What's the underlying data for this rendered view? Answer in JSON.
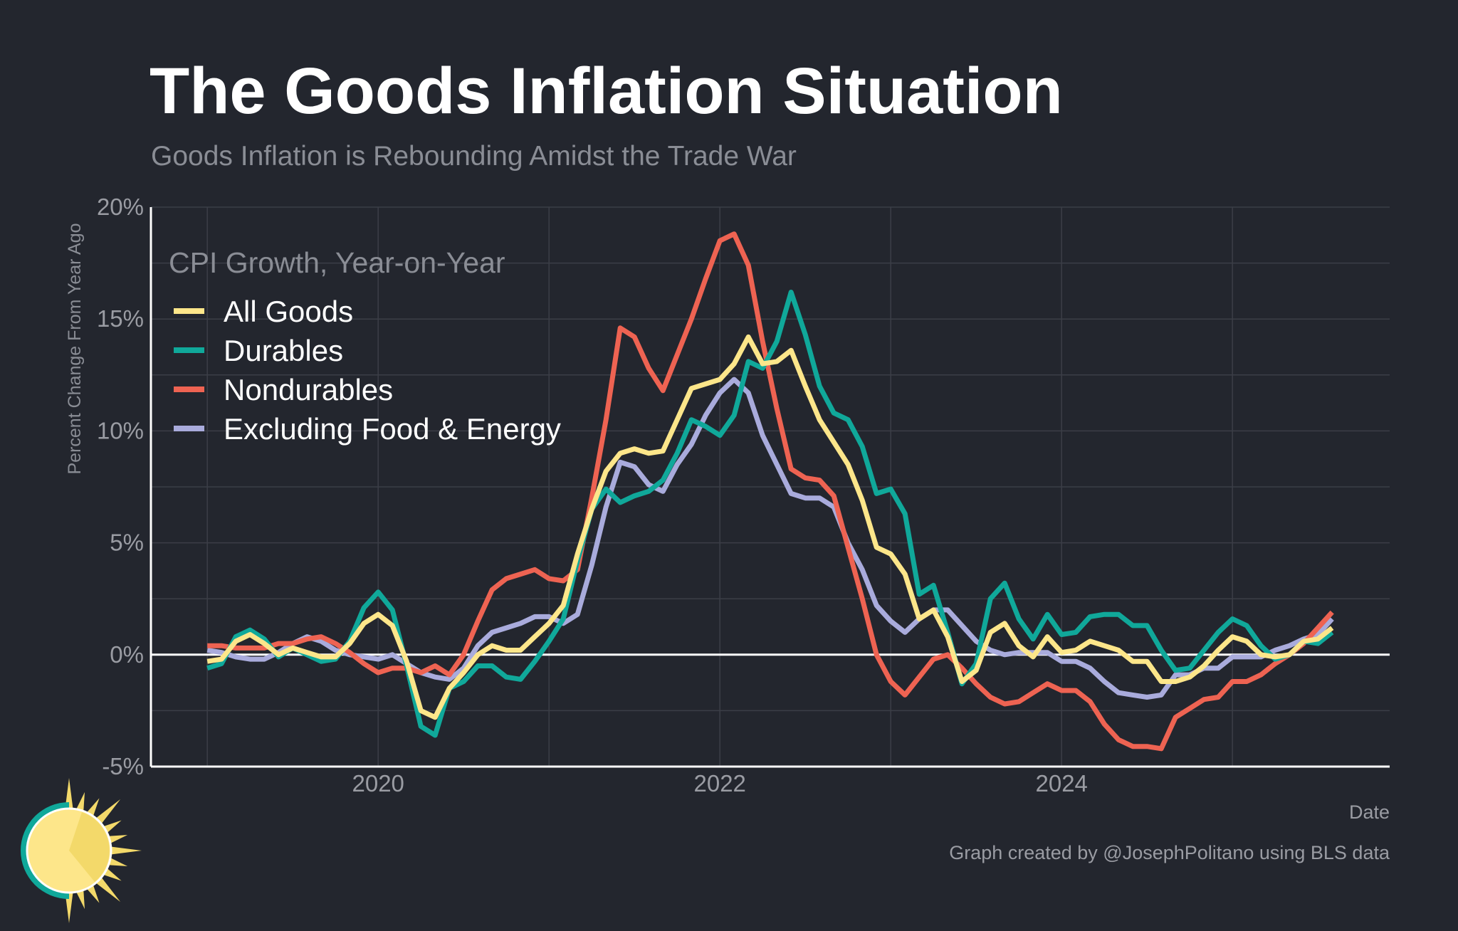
{
  "header": {
    "title": "The Goods Inflation Situation",
    "subtitle": "Goods Inflation is Rebounding Amidst the Trade War"
  },
  "footer": {
    "credit": "Graph created by @JosephPolitano using BLS data"
  },
  "colors": {
    "background": "#23262e",
    "all_goods": "#fde68a",
    "durables": "#10a89a",
    "nondurables": "#ee6352",
    "ex_food_energy": "#a9abdc"
  },
  "chart_data": {
    "type": "line",
    "title": "The Goods Inflation Situation",
    "subtitle": "Goods Inflation is Rebounding Amidst the Trade War",
    "xlabel": "Date",
    "ylabel": "Percent Change From Year Ago",
    "x_start": "2019-01",
    "x_frequency": "monthly",
    "xlim": [
      2018.67,
      2025.92
    ],
    "ylim": [
      -5,
      20
    ],
    "xticks": [
      2020,
      2022,
      2024
    ],
    "xtick_labels": [
      "2020",
      "2022",
      "2024"
    ],
    "yticks": [
      -5,
      0,
      5,
      10,
      15,
      20
    ],
    "ytick_labels": [
      "-5%",
      "0%",
      "5%",
      "10%",
      "15%",
      "20%"
    ],
    "grid": true,
    "legend_title": "CPI Growth, Year-on-Year",
    "legend_position": "top-left",
    "series": [
      {
        "name": "All Goods",
        "color_key": "all_goods",
        "values": [
          -0.3,
          -0.2,
          0.6,
          0.9,
          0.5,
          0.0,
          0.3,
          0.1,
          -0.1,
          -0.1,
          0.5,
          1.4,
          1.8,
          1.3,
          -0.3,
          -2.5,
          -2.8,
          -1.5,
          -0.8,
          0.0,
          0.4,
          0.2,
          0.2,
          0.8,
          1.4,
          2.2,
          4.5,
          6.5,
          8.2,
          9.0,
          9.2,
          9.0,
          9.1,
          10.5,
          11.9,
          12.1,
          12.3,
          13.0,
          14.2,
          13.0,
          13.1,
          13.6,
          12.0,
          10.5,
          9.5,
          8.5,
          6.9,
          4.8,
          4.5,
          3.6,
          1.6,
          2.0,
          0.8,
          -1.2,
          -0.7,
          1.0,
          1.4,
          0.4,
          -0.1,
          0.8,
          0.1,
          0.2,
          0.6,
          0.4,
          0.2,
          -0.3,
          -0.3,
          -1.2,
          -1.2,
          -1.0,
          -0.5,
          0.2,
          0.8,
          0.6,
          0.0,
          -0.1,
          0.0,
          0.6,
          0.7,
          1.2
        ]
      },
      {
        "name": "Durables",
        "color_key": "durables",
        "values": [
          -0.6,
          -0.4,
          0.8,
          1.1,
          0.7,
          -0.1,
          0.3,
          0.0,
          -0.3,
          -0.2,
          0.6,
          2.1,
          2.8,
          2.0,
          -0.5,
          -3.2,
          -3.6,
          -1.5,
          -1.2,
          -0.5,
          -0.5,
          -1.0,
          -1.1,
          -0.3,
          0.6,
          1.6,
          4.2,
          6.5,
          7.4,
          6.8,
          7.1,
          7.3,
          7.8,
          9.0,
          10.5,
          10.2,
          9.8,
          10.7,
          13.1,
          12.8,
          14.0,
          16.2,
          14.3,
          12.0,
          10.8,
          10.5,
          9.3,
          7.2,
          7.4,
          6.3,
          2.7,
          3.1,
          1.0,
          -1.3,
          -0.4,
          2.5,
          3.2,
          1.6,
          0.7,
          1.8,
          0.9,
          1.0,
          1.7,
          1.8,
          1.8,
          1.3,
          1.3,
          0.2,
          -0.7,
          -0.6,
          0.2,
          1.0,
          1.6,
          1.3,
          0.4,
          -0.2,
          0.0,
          0.6,
          0.5,
          1.0
        ]
      },
      {
        "name": "Nondurables",
        "color_key": "nondurables",
        "values": [
          0.4,
          0.4,
          0.3,
          0.3,
          0.3,
          0.5,
          0.5,
          0.7,
          0.8,
          0.5,
          0.1,
          -0.4,
          -0.8,
          -0.6,
          -0.6,
          -0.8,
          -0.5,
          -0.9,
          0.0,
          1.5,
          2.9,
          3.4,
          3.6,
          3.8,
          3.4,
          3.3,
          3.8,
          7.0,
          10.5,
          14.6,
          14.2,
          12.8,
          11.8,
          13.4,
          15.0,
          16.8,
          18.5,
          18.8,
          17.4,
          14.0,
          11.0,
          8.3,
          7.9,
          7.8,
          7.1,
          4.8,
          2.5,
          0.0,
          -1.2,
          -1.8,
          -1.0,
          -0.2,
          0.0,
          -0.6,
          -1.3,
          -1.9,
          -2.2,
          -2.1,
          -1.7,
          -1.3,
          -1.6,
          -1.6,
          -2.1,
          -3.1,
          -3.8,
          -4.1,
          -4.1,
          -4.2,
          -2.8,
          -2.4,
          -2.0,
          -1.9,
          -1.2,
          -1.2,
          -0.9,
          -0.4,
          0.0,
          0.5,
          1.2,
          1.9
        ]
      },
      {
        "name": "Excluding Food & Energy",
        "color_key": "ex_food_energy",
        "values": [
          0.2,
          0.1,
          -0.1,
          -0.2,
          -0.2,
          0.1,
          0.5,
          0.8,
          0.6,
          0.2,
          0.0,
          -0.1,
          -0.2,
          0.0,
          -0.4,
          -0.8,
          -1.0,
          -1.1,
          -0.6,
          0.4,
          1.0,
          1.2,
          1.4,
          1.7,
          1.7,
          1.4,
          1.8,
          4.0,
          6.6,
          8.6,
          8.4,
          7.6,
          7.3,
          8.5,
          9.4,
          10.7,
          11.7,
          12.3,
          11.7,
          9.8,
          8.5,
          7.2,
          7.0,
          7.0,
          6.6,
          5.0,
          3.8,
          2.2,
          1.5,
          1.0,
          1.6,
          2.0,
          2.0,
          1.3,
          0.6,
          0.2,
          0.0,
          0.1,
          0.1,
          0.1,
          -0.3,
          -0.3,
          -0.6,
          -1.2,
          -1.7,
          -1.8,
          -1.9,
          -1.8,
          -0.9,
          -0.9,
          -0.6,
          -0.6,
          -0.1,
          -0.1,
          -0.1,
          0.2,
          0.4,
          0.7,
          0.9,
          1.6
        ]
      }
    ]
  }
}
